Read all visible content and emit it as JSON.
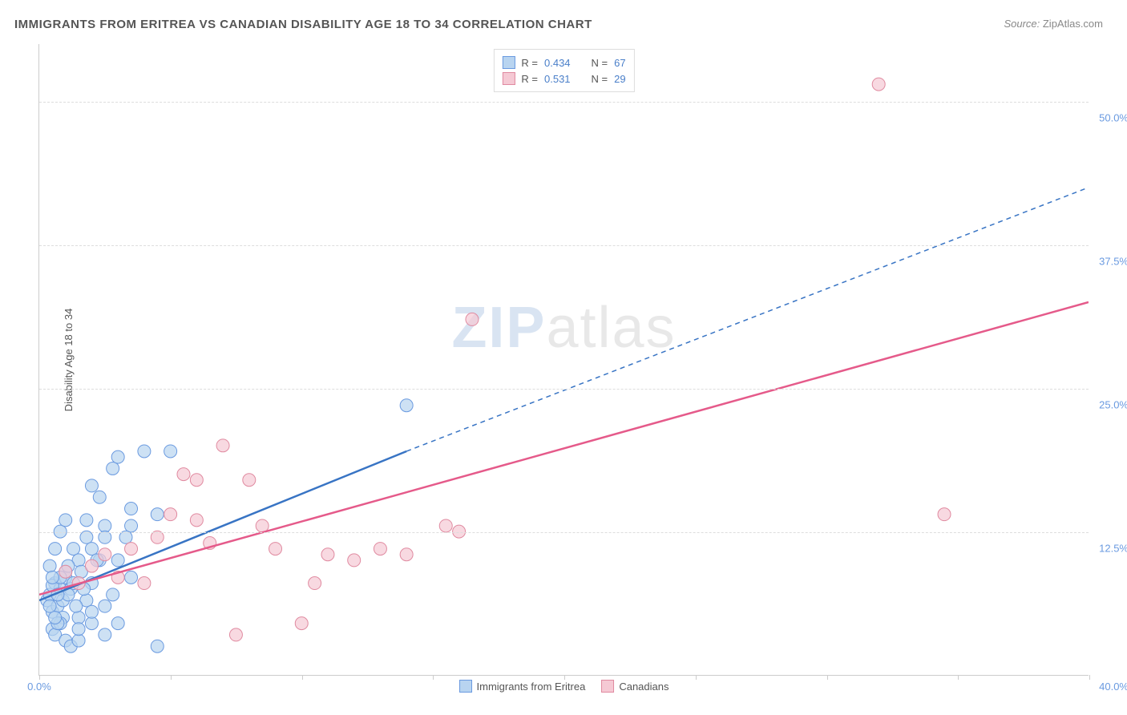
{
  "title": "IMMIGRANTS FROM ERITREA VS CANADIAN DISABILITY AGE 18 TO 34 CORRELATION CHART",
  "source_label": "Source: ",
  "source_value": "ZipAtlas.com",
  "y_axis_label": "Disability Age 18 to 34",
  "watermark_zip": "ZIP",
  "watermark_atlas": "atlas",
  "chart": {
    "type": "scatter",
    "xlim": [
      0,
      40
    ],
    "ylim": [
      0,
      55
    ],
    "x_ticks": [
      0,
      5,
      10,
      15,
      20,
      25,
      30,
      35,
      40
    ],
    "x_tick_labels": {
      "0": "0.0%",
      "40": "40.0%"
    },
    "y_ticks": [
      12.5,
      25.0,
      37.5,
      50.0
    ],
    "y_tick_labels": [
      "12.5%",
      "25.0%",
      "37.5%",
      "50.0%"
    ],
    "grid_color": "#dddddd",
    "background_color": "#ffffff",
    "series": [
      {
        "name": "Immigrants from Eritrea",
        "color_fill": "#b8d4f0",
        "color_stroke": "#6a9ae0",
        "marker_radius": 8,
        "r_value": "0.434",
        "n_value": "67",
        "points": [
          [
            0.3,
            6.5
          ],
          [
            0.4,
            7.0
          ],
          [
            0.5,
            5.5
          ],
          [
            0.6,
            8.0
          ],
          [
            0.7,
            6.0
          ],
          [
            0.8,
            7.5
          ],
          [
            0.9,
            5.0
          ],
          [
            1.0,
            8.5
          ],
          [
            0.5,
            4.0
          ],
          [
            0.6,
            3.5
          ],
          [
            0.8,
            4.5
          ],
          [
            1.0,
            9.0
          ],
          [
            1.2,
            7.5
          ],
          [
            1.3,
            11.0
          ],
          [
            1.5,
            10.0
          ],
          [
            1.8,
            12.0
          ],
          [
            2.0,
            16.5
          ],
          [
            1.5,
            5.0
          ],
          [
            1.8,
            6.5
          ],
          [
            2.0,
            8.0
          ],
          [
            2.3,
            10.0
          ],
          [
            2.5,
            13.0
          ],
          [
            2.8,
            18.0
          ],
          [
            3.0,
            19.0
          ],
          [
            3.5,
            13.0
          ],
          [
            2.0,
            4.5
          ],
          [
            2.5,
            6.0
          ],
          [
            1.0,
            3.0
          ],
          [
            1.2,
            2.5
          ],
          [
            1.5,
            3.0
          ],
          [
            4.0,
            19.5
          ],
          [
            3.5,
            14.5
          ],
          [
            0.4,
            9.5
          ],
          [
            0.6,
            11.0
          ],
          [
            0.8,
            12.5
          ],
          [
            1.0,
            13.5
          ],
          [
            2.0,
            11.0
          ],
          [
            2.5,
            12.0
          ],
          [
            5.0,
            19.5
          ],
          [
            4.5,
            14.0
          ],
          [
            3.0,
            10.0
          ],
          [
            3.5,
            8.5
          ],
          [
            1.3,
            8.0
          ],
          [
            1.6,
            9.0
          ],
          [
            2.2,
            10.0
          ],
          [
            2.0,
            5.5
          ],
          [
            2.8,
            7.0
          ],
          [
            4.5,
            2.5
          ],
          [
            0.7,
            4.5
          ],
          [
            0.9,
            6.5
          ],
          [
            1.1,
            7.0
          ],
          [
            1.4,
            6.0
          ],
          [
            1.7,
            7.5
          ],
          [
            0.5,
            7.8
          ],
          [
            0.8,
            8.5
          ],
          [
            1.1,
            9.5
          ],
          [
            2.5,
            3.5
          ],
          [
            3.0,
            4.5
          ],
          [
            1.8,
            13.5
          ],
          [
            2.3,
            15.5
          ],
          [
            3.3,
            12.0
          ],
          [
            1.5,
            4.0
          ],
          [
            0.6,
            5.0
          ],
          [
            14.0,
            23.5
          ],
          [
            0.4,
            6.0
          ],
          [
            0.5,
            8.5
          ],
          [
            0.7,
            7.0
          ]
        ],
        "trend_solid": {
          "x1": 0,
          "y1": 6.5,
          "x2": 14.0,
          "y2": 19.5
        },
        "trend_dash": {
          "x1": 14.0,
          "y1": 19.5,
          "x2": 40.0,
          "y2": 42.5
        },
        "line_color": "#3874c4",
        "line_width": 2.5
      },
      {
        "name": "Canadians",
        "color_fill": "#f5c9d4",
        "color_stroke": "#e08aa0",
        "marker_radius": 8,
        "r_value": "0.531",
        "n_value": "29",
        "points": [
          [
            1.0,
            9.0
          ],
          [
            1.5,
            8.0
          ],
          [
            2.0,
            9.5
          ],
          [
            2.5,
            10.5
          ],
          [
            3.0,
            8.5
          ],
          [
            3.5,
            11.0
          ],
          [
            4.0,
            8.0
          ],
          [
            4.5,
            12.0
          ],
          [
            5.0,
            14.0
          ],
          [
            5.5,
            17.5
          ],
          [
            6.0,
            13.5
          ],
          [
            6.5,
            11.5
          ],
          [
            7.0,
            20.0
          ],
          [
            8.0,
            17.0
          ],
          [
            8.5,
            13.0
          ],
          [
            9.0,
            11.0
          ],
          [
            10.0,
            4.5
          ],
          [
            10.5,
            8.0
          ],
          [
            11.0,
            10.5
          ],
          [
            12.0,
            10.0
          ],
          [
            13.0,
            11.0
          ],
          [
            14.0,
            10.5
          ],
          [
            15.5,
            13.0
          ],
          [
            16.0,
            12.5
          ],
          [
            16.5,
            31.0
          ],
          [
            7.5,
            3.5
          ],
          [
            6.0,
            17.0
          ],
          [
            32.0,
            51.5
          ],
          [
            34.5,
            14.0
          ]
        ],
        "trend_solid": {
          "x1": 0,
          "y1": 7.0,
          "x2": 40.0,
          "y2": 32.5
        },
        "line_color": "#e55a8a",
        "line_width": 2.5
      }
    ]
  },
  "legend_bottom": [
    {
      "label": "Immigrants from Eritrea",
      "fill": "#b8d4f0",
      "stroke": "#6a9ae0"
    },
    {
      "label": "Canadians",
      "fill": "#f5c9d4",
      "stroke": "#e08aa0"
    }
  ]
}
